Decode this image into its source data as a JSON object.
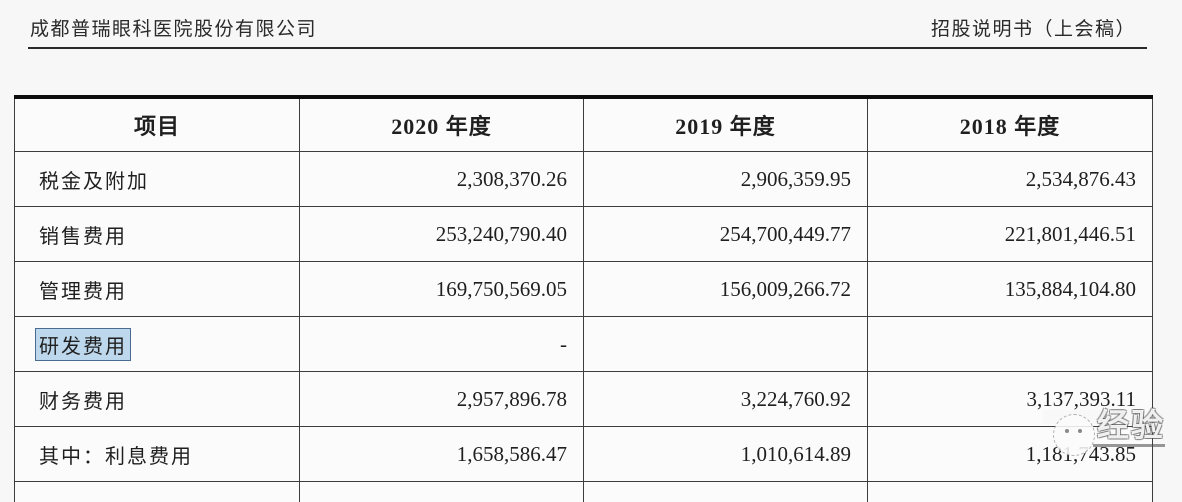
{
  "header": {
    "left": "成都普瑞眼科医院股份有限公司",
    "right": "招股说明书（上会稿）"
  },
  "table": {
    "columns": [
      "项目",
      "2020 年度",
      "2019 年度",
      "2018 年度"
    ],
    "rows": [
      {
        "label": "税金及附加",
        "v2020": "2,308,370.26",
        "v2019": "2,906,359.95",
        "v2018": "2,534,876.43",
        "highlighted": false,
        "watermarked": false
      },
      {
        "label": "销售费用",
        "v2020": "253,240,790.40",
        "v2019": "254,700,449.77",
        "v2018": "221,801,446.51",
        "highlighted": false,
        "watermarked": false
      },
      {
        "label": "管理费用",
        "v2020": "169,750,569.05",
        "v2019": "156,009,266.72",
        "v2018": "135,884,104.80",
        "highlighted": false,
        "watermarked": false
      },
      {
        "label": "研发费用",
        "v2020": "-",
        "v2019": "",
        "v2018": "",
        "highlighted": true,
        "watermarked": false
      },
      {
        "label": "财务费用",
        "v2020": "2,957,896.78",
        "v2019": "3,224,760.92",
        "v2018": "3,137,393.11",
        "highlighted": false,
        "watermarked": false
      },
      {
        "label": "其中：利息费用",
        "v2020": "1,658,586.47",
        "v2019": "1,010,614.89",
        "v2018": "1,181,743.85",
        "highlighted": false,
        "watermarked": true
      }
    ]
  },
  "watermark": {
    "text": "经验"
  },
  "colors": {
    "page_bg": "#f7f7f8",
    "table_bg": "#fbfbfc",
    "border": "#3d3d3d",
    "border_thick": "#0d0d0d",
    "highlight_bg": "#bdd7ec",
    "highlight_border": "#4a6c91",
    "text": "#1f1f1f"
  }
}
